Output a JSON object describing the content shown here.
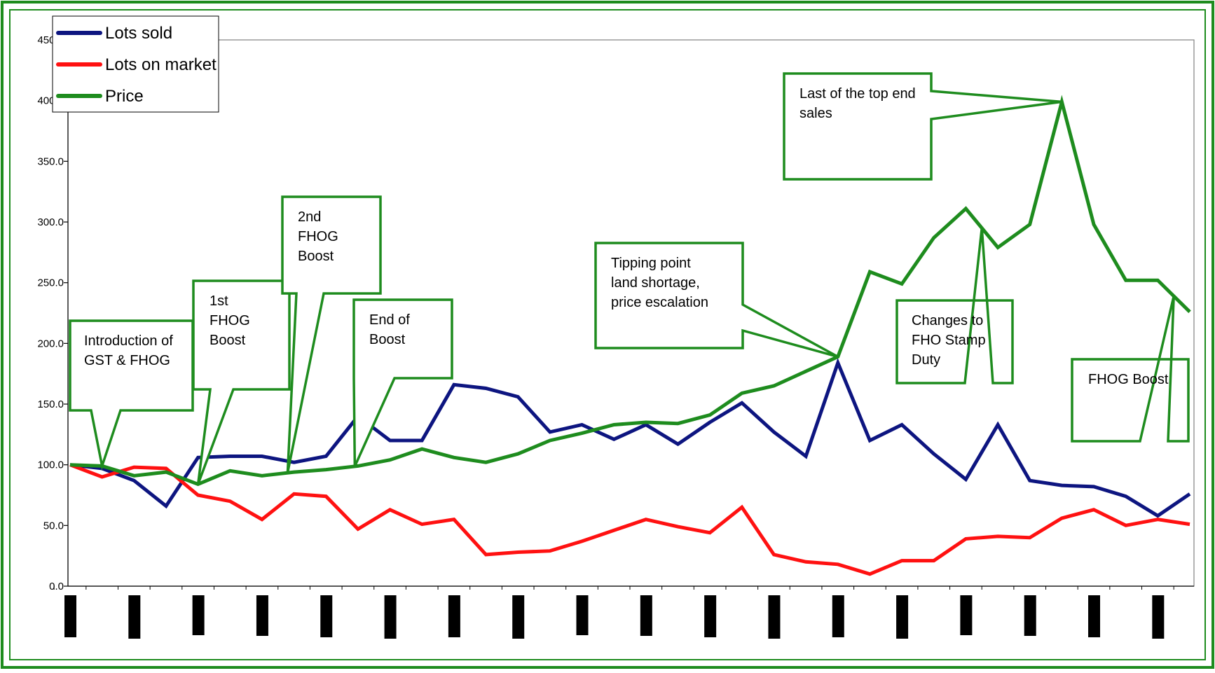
{
  "chart_data": {
    "type": "line",
    "ylim": [
      0,
      450
    ],
    "yticks": [
      0,
      50,
      100,
      150,
      200,
      250,
      300,
      350,
      400,
      450
    ],
    "ytick_labels": [
      "0.0",
      "50.0",
      "100.0",
      "150.0",
      "200.0",
      "250.0",
      "300.0",
      "350.0",
      "400.0",
      "450.0"
    ],
    "grid": false,
    "legend_position": "top-left",
    "x_tick_labels_redacted": true,
    "colors": {
      "frame": "#1e8c1e",
      "callout": "#1e8c1e",
      "plot_border": "#808080",
      "tick_label_block": "#000000"
    },
    "series": [
      {
        "name": "Lots sold",
        "color": "#0d1580",
        "values": [
          100,
          97,
          87,
          66,
          106,
          107,
          107,
          102,
          107,
          140,
          120,
          120,
          166,
          163,
          156,
          127,
          133,
          121,
          133,
          117,
          135,
          151,
          127,
          107,
          184,
          120,
          133,
          109,
          88,
          133,
          87,
          83,
          82,
          74,
          58,
          76
        ]
      },
      {
        "name": "Lots on market",
        "color": "#ff1111",
        "values": [
          100,
          90,
          98,
          97,
          75,
          70,
          55,
          76,
          74,
          47,
          63,
          51,
          55,
          26,
          28,
          29,
          37,
          46,
          55,
          49,
          44,
          65,
          26,
          20,
          18,
          10,
          21,
          21,
          39,
          41,
          40,
          56,
          63,
          50,
          55,
          51
        ]
      },
      {
        "name": "Price",
        "color": "#1e8c1e",
        "values": [
          100,
          99,
          91,
          94,
          84,
          95,
          91,
          94,
          96,
          99,
          104,
          113,
          106,
          102,
          109,
          120,
          126,
          133,
          135,
          134,
          141,
          159,
          165,
          177,
          189,
          259,
          249,
          287,
          311,
          279,
          298,
          399,
          298,
          252,
          252,
          226
        ]
      }
    ],
    "annotations": [
      {
        "lines": [
          "Introduction of",
          "GST & FHOG"
        ],
        "target_index": 1
      },
      {
        "lines": [
          "1st",
          "FHOG",
          "Boost"
        ],
        "target_index": 4
      },
      {
        "lines": [
          "2nd",
          "FHOG",
          "Boost"
        ],
        "target_index": 6.8
      },
      {
        "lines": [
          "End of",
          "Boost"
        ],
        "target_index": 8.9
      },
      {
        "lines": [
          "Tipping point",
          "land shortage,",
          "price escalation"
        ],
        "target_index": 24
      },
      {
        "lines": [
          "Last of the top end",
          "sales"
        ],
        "target_index": 31
      },
      {
        "lines": [
          "Changes to",
          "FHO Stamp",
          "Duty"
        ],
        "target_index": 28.5
      },
      {
        "lines": [
          "FHOG Boost"
        ],
        "target_index": 34.5
      }
    ]
  }
}
